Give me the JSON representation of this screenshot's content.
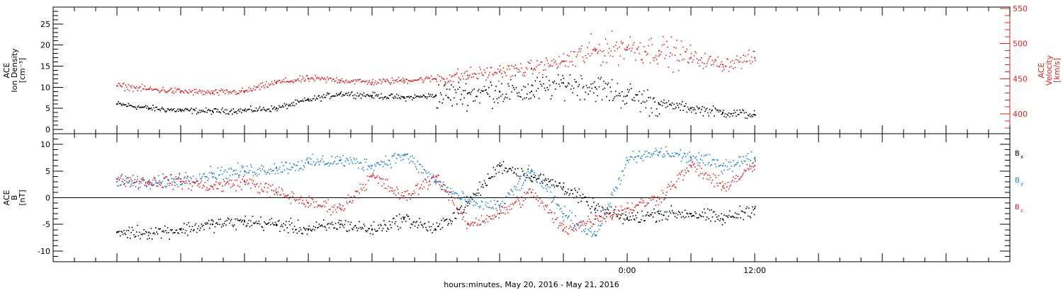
{
  "chart_data": [
    {
      "type": "scatter",
      "panel": "top",
      "left_axis": {
        "lines": [
          "ACE",
          "Ion Density",
          "[cm⁻³]"
        ],
        "ylim": [
          -1,
          29
        ],
        "ticks": [
          0,
          5,
          10,
          15,
          20,
          25
        ]
      },
      "right_axis": {
        "lines": [
          "ACE",
          "Velocity",
          "[km/s]"
        ],
        "ylim": [
          372,
          552
        ],
        "ticks": [
          400,
          450,
          500,
          550
        ]
      },
      "series": [
        {
          "color": "#000000",
          "axis": "left",
          "x": [
            -48.0,
            -45.0,
            -42.0,
            -39.0,
            -36.0,
            -33.0,
            -30.0,
            -27.0,
            -24.0,
            -21.0,
            -18.0,
            -15.0,
            -12.0,
            -9.0,
            -6.0,
            -3.0,
            0.0,
            3.0,
            6.0,
            9.0,
            12.0
          ],
          "y": [
            6.0,
            5.0,
            4.5,
            4.3,
            4.5,
            5.0,
            7.0,
            8.5,
            8.0,
            7.5,
            8.0,
            8.5,
            9.0,
            9.0,
            11.0,
            10.0,
            8.0,
            6.0,
            5.0,
            4.0,
            3.5
          ]
        },
        {
          "color": "#e02020",
          "axis": "right",
          "x": [
            -48.0,
            -45.0,
            -42.0,
            -39.0,
            -36.0,
            -33.0,
            -30.0,
            -27.0,
            -24.0,
            -21.0,
            -18.0,
            -15.0,
            -12.0,
            -9.0,
            -6.0,
            -3.0,
            0.0,
            3.0,
            6.0,
            9.0,
            12.0
          ],
          "y": [
            440.0,
            435.0,
            432.0,
            430.0,
            432.0,
            445.0,
            450.0,
            448.0,
            445.0,
            448.0,
            450.0,
            455.0,
            460.0,
            465.0,
            475.0,
            490.0,
            495.0,
            490.0,
            480.0,
            470.0,
            480.0
          ]
        }
      ]
    },
    {
      "type": "scatter",
      "panel": "bottom",
      "left_axis": {
        "lines": [
          "ACE",
          "B",
          "[nT]"
        ],
        "ylim": [
          -12,
          12
        ],
        "ticks": [
          -10,
          -5,
          0,
          5,
          10
        ]
      },
      "zero_line": true,
      "legend_placement": "right",
      "series": [
        {
          "name": "B",
          "sub": "x",
          "color": "#000000",
          "x": [
            -48.0,
            -45.0,
            -42.0,
            -39.0,
            -36.0,
            -33.0,
            -30.0,
            -27.0,
            -24.0,
            -21.0,
            -18.0,
            -15.0,
            -12.0,
            -9.0,
            -6.0,
            -3.0,
            0.0,
            3.0,
            6.0,
            9.0,
            12.0
          ],
          "y": [
            -6.5,
            -6.5,
            -6.0,
            -5.0,
            -4.5,
            -5.0,
            -6.0,
            -5.0,
            -6.0,
            -4.0,
            -6.0,
            -1.0,
            6.0,
            4.0,
            2.0,
            -2.0,
            -4.0,
            -3.0,
            -3.0,
            -4.0,
            -2.0
          ]
        },
        {
          "name": "B",
          "sub": "y",
          "color": "#1a7fd4",
          "x": [
            -48.0,
            -45.0,
            -42.0,
            -39.0,
            -36.0,
            -33.0,
            -30.0,
            -27.0,
            -24.0,
            -21.0,
            -18.0,
            -15.0,
            -12.0,
            -9.0,
            -6.0,
            -3.0,
            0.0,
            3.0,
            6.0,
            9.0,
            12.0
          ],
          "y": [
            3.0,
            2.5,
            3.5,
            4.5,
            5.0,
            5.5,
            6.5,
            7.0,
            6.0,
            8.0,
            3.0,
            -1.0,
            -1.5,
            5.0,
            -3.0,
            -7.0,
            7.0,
            8.5,
            7.5,
            6.0,
            7.5
          ]
        },
        {
          "name": "B",
          "sub": "z",
          "color": "#e02020",
          "x": [
            -48.0,
            -45.0,
            -42.0,
            -39.0,
            -36.0,
            -33.0,
            -30.0,
            -27.0,
            -24.0,
            -21.0,
            -18.0,
            -15.0,
            -12.0,
            -9.0,
            -6.0,
            -3.0,
            0.0,
            3.0,
            6.0,
            9.0,
            12.0
          ],
          "y": [
            3.5,
            3.0,
            3.0,
            2.0,
            3.0,
            1.0,
            -1.0,
            -2.0,
            4.0,
            0.0,
            4.0,
            -5.0,
            -3.0,
            1.0,
            -6.0,
            -4.0,
            -2.0,
            0.0,
            6.0,
            2.0,
            6.0
          ]
        }
      ]
    }
  ],
  "x_axis": {
    "label": "hours:minutes, May 20, 2016 - May 21, 2016",
    "xlim": [
      -54,
      36
    ],
    "tick_labels": [
      {
        "x": 0,
        "label": "0:00"
      },
      {
        "x": 12,
        "label": "12:00"
      }
    ],
    "minor_tick_step_hours": 2
  },
  "colors": {
    "black": "#000000",
    "blue": "#1a7fd4",
    "red": "#e02020"
  }
}
